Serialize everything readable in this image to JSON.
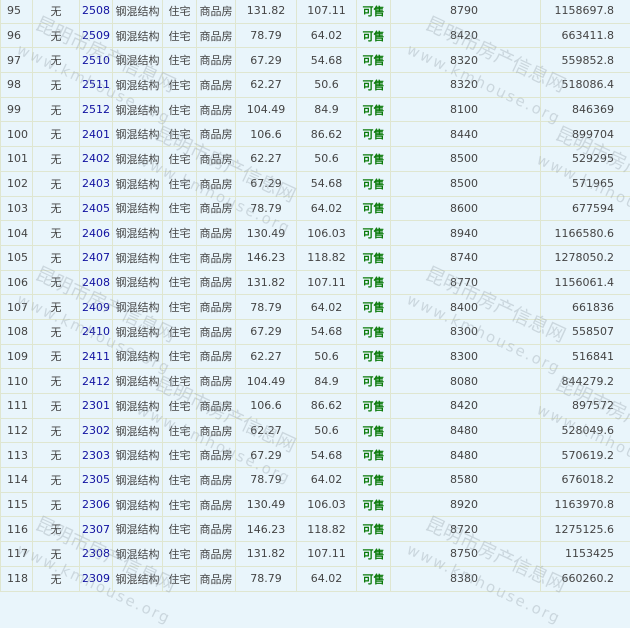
{
  "watermark": {
    "cn": "昆明市房产信息网",
    "url": "www.kmhouse.org"
  },
  "colors": {
    "background": "#e9f5fb",
    "room_link": "#1010a0",
    "status_available": "#0a7a0a",
    "grid": "#dfe6d0"
  },
  "rows": [
    [
      "95",
      "无",
      "2508",
      "钢混结构",
      "住宅",
      "商品房",
      "131.82",
      "107.11",
      "可售",
      "8790",
      "1158697.8"
    ],
    [
      "96",
      "无",
      "2509",
      "钢混结构",
      "住宅",
      "商品房",
      "78.79",
      "64.02",
      "可售",
      "8420",
      "663411.8"
    ],
    [
      "97",
      "无",
      "2510",
      "钢混结构",
      "住宅",
      "商品房",
      "67.29",
      "54.68",
      "可售",
      "8320",
      "559852.8"
    ],
    [
      "98",
      "无",
      "2511",
      "钢混结构",
      "住宅",
      "商品房",
      "62.27",
      "50.6",
      "可售",
      "8320",
      "518086.4"
    ],
    [
      "99",
      "无",
      "2512",
      "钢混结构",
      "住宅",
      "商品房",
      "104.49",
      "84.9",
      "可售",
      "8100",
      "846369"
    ],
    [
      "100",
      "无",
      "2401",
      "钢混结构",
      "住宅",
      "商品房",
      "106.6",
      "86.62",
      "可售",
      "8440",
      "899704"
    ],
    [
      "101",
      "无",
      "2402",
      "钢混结构",
      "住宅",
      "商品房",
      "62.27",
      "50.6",
      "可售",
      "8500",
      "529295"
    ],
    [
      "102",
      "无",
      "2403",
      "钢混结构",
      "住宅",
      "商品房",
      "67.29",
      "54.68",
      "可售",
      "8500",
      "571965"
    ],
    [
      "103",
      "无",
      "2405",
      "钢混结构",
      "住宅",
      "商品房",
      "78.79",
      "64.02",
      "可售",
      "8600",
      "677594"
    ],
    [
      "104",
      "无",
      "2406",
      "钢混结构",
      "住宅",
      "商品房",
      "130.49",
      "106.03",
      "可售",
      "8940",
      "1166580.6"
    ],
    [
      "105",
      "无",
      "2407",
      "钢混结构",
      "住宅",
      "商品房",
      "146.23",
      "118.82",
      "可售",
      "8740",
      "1278050.2"
    ],
    [
      "106",
      "无",
      "2408",
      "钢混结构",
      "住宅",
      "商品房",
      "131.82",
      "107.11",
      "可售",
      "8770",
      "1156061.4"
    ],
    [
      "107",
      "无",
      "2409",
      "钢混结构",
      "住宅",
      "商品房",
      "78.79",
      "64.02",
      "可售",
      "8400",
      "661836"
    ],
    [
      "108",
      "无",
      "2410",
      "钢混结构",
      "住宅",
      "商品房",
      "67.29",
      "54.68",
      "可售",
      "8300",
      "558507"
    ],
    [
      "109",
      "无",
      "2411",
      "钢混结构",
      "住宅",
      "商品房",
      "62.27",
      "50.6",
      "可售",
      "8300",
      "516841"
    ],
    [
      "110",
      "无",
      "2412",
      "钢混结构",
      "住宅",
      "商品房",
      "104.49",
      "84.9",
      "可售",
      "8080",
      "844279.2"
    ],
    [
      "111",
      "无",
      "2301",
      "钢混结构",
      "住宅",
      "商品房",
      "106.6",
      "86.62",
      "可售",
      "8420",
      "897572"
    ],
    [
      "112",
      "无",
      "2302",
      "钢混结构",
      "住宅",
      "商品房",
      "62.27",
      "50.6",
      "可售",
      "8480",
      "528049.6"
    ],
    [
      "113",
      "无",
      "2303",
      "钢混结构",
      "住宅",
      "商品房",
      "67.29",
      "54.68",
      "可售",
      "8480",
      "570619.2"
    ],
    [
      "114",
      "无",
      "2305",
      "钢混结构",
      "住宅",
      "商品房",
      "78.79",
      "64.02",
      "可售",
      "8580",
      "676018.2"
    ],
    [
      "115",
      "无",
      "2306",
      "钢混结构",
      "住宅",
      "商品房",
      "130.49",
      "106.03",
      "可售",
      "8920",
      "1163970.8"
    ],
    [
      "116",
      "无",
      "2307",
      "钢混结构",
      "住宅",
      "商品房",
      "146.23",
      "118.82",
      "可售",
      "8720",
      "1275125.6"
    ],
    [
      "117",
      "无",
      "2308",
      "钢混结构",
      "住宅",
      "商品房",
      "131.82",
      "107.11",
      "可售",
      "8750",
      "1153425"
    ],
    [
      "118",
      "无",
      "2309",
      "钢混结构",
      "住宅",
      "商品房",
      "78.79",
      "64.02",
      "可售",
      "8380",
      "660260.2"
    ]
  ]
}
